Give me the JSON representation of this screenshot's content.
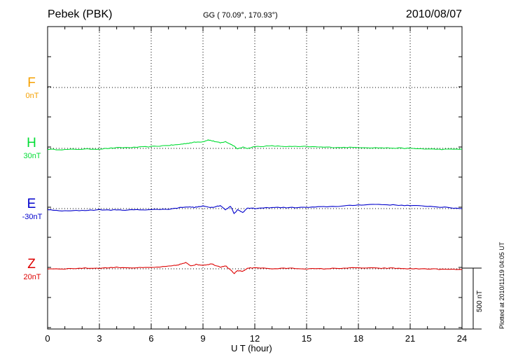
{
  "header": {
    "station": "Pebek (PBK)",
    "coords": "GG ( 70.09°, 170.93°)",
    "date": "2010/08/07"
  },
  "footer": {
    "plotted": "Plotted at 2010/11/19 04:05 UT",
    "scale_bar_label": "500 nT"
  },
  "chart_data": {
    "type": "line",
    "title": "Pebek (PBK)",
    "xlabel": "U T (hour)",
    "ylabel": "",
    "xlim": [
      0,
      24
    ],
    "x_ticks": [
      0,
      3,
      6,
      9,
      12,
      15,
      18,
      21,
      24
    ],
    "x_tick_labels": [
      "0",
      "3",
      "6",
      "9",
      "12",
      "15",
      "18",
      "21",
      "24"
    ],
    "grid": true,
    "scale_bar_nT": 500,
    "series": [
      {
        "name": "F",
        "offset_label": "0nT",
        "color": "#f5a000",
        "values": []
      },
      {
        "name": "H",
        "offset_label": "30nT",
        "color": "#00dd33",
        "x": [
          0,
          1,
          2,
          3,
          4,
          5,
          6,
          7,
          7.5,
          8,
          8.5,
          9,
          9.3,
          9.6,
          10,
          10.3,
          10.6,
          10.8,
          11,
          11.3,
          11.6,
          12,
          13,
          14,
          15,
          16,
          17,
          18,
          19,
          20,
          21,
          22,
          23,
          24
        ],
        "values": [
          -8,
          -10,
          -6,
          -5,
          5,
          8,
          15,
          25,
          30,
          40,
          50,
          55,
          70,
          60,
          45,
          55,
          35,
          20,
          -5,
          10,
          0,
          15,
          20,
          15,
          15,
          10,
          8,
          8,
          5,
          3,
          0,
          -5,
          -8,
          -5
        ]
      },
      {
        "name": "E",
        "offset_label": "-30nT",
        "color": "#0000cc",
        "x": [
          0,
          1,
          2,
          3,
          4,
          5,
          6,
          7,
          8,
          8.5,
          9,
          9.5,
          10,
          10.3,
          10.6,
          10.8,
          11,
          11.3,
          11.6,
          12,
          13,
          14,
          15,
          16,
          17,
          18,
          19,
          20,
          21,
          22,
          23,
          24
        ],
        "values": [
          -10,
          -20,
          -15,
          -10,
          -12,
          -10,
          -8,
          -5,
          15,
          10,
          20,
          10,
          25,
          -10,
          20,
          -40,
          -10,
          -30,
          5,
          0,
          10,
          8,
          10,
          15,
          20,
          30,
          35,
          30,
          25,
          20,
          10,
          0
        ]
      },
      {
        "name": "Z",
        "offset_label": "20nT",
        "color": "#dd0000",
        "x": [
          0,
          1,
          2,
          3,
          4,
          5,
          6,
          7,
          7.5,
          8,
          8.3,
          8.6,
          9,
          9.5,
          10,
          10.3,
          10.6,
          10.8,
          11,
          11.3,
          11.6,
          12,
          13,
          14,
          15,
          16,
          17,
          18,
          19,
          20,
          21,
          22,
          23,
          24
        ],
        "values": [
          0,
          0,
          5,
          5,
          12,
          8,
          10,
          20,
          30,
          50,
          25,
          35,
          30,
          40,
          15,
          25,
          -10,
          -40,
          -15,
          -20,
          5,
          10,
          0,
          5,
          0,
          0,
          5,
          8,
          5,
          5,
          0,
          0,
          -5,
          -5
        ]
      }
    ]
  }
}
